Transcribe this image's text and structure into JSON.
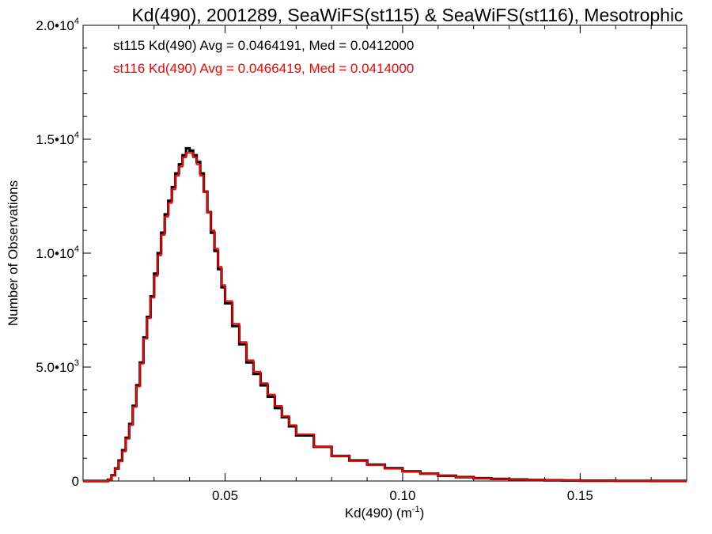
{
  "chart_data": {
    "type": "line",
    "title": "Kd(490), 2001289, SeaWiFS(st115) & SeaWiFS(st116), Mesotrophic",
    "xlabel_base": "Kd(490) (m",
    "xlabel_exp": "-1",
    "xlabel_close": ")",
    "ylabel": "Number of Observations",
    "xlim": [
      0.01,
      0.18
    ],
    "ylim": [
      0,
      20000
    ],
    "x_ticks": [
      {
        "value": 0.05,
        "label": "0.05"
      },
      {
        "value": 0.1,
        "label": "0.10"
      },
      {
        "value": 0.15,
        "label": "0.15"
      }
    ],
    "y_ticks": [
      {
        "value": 0,
        "mant": "0",
        "exp": ""
      },
      {
        "value": 5000,
        "mant": "5.0•10",
        "exp": "3"
      },
      {
        "value": 10000,
        "mant": "1.0•10",
        "exp": "4"
      },
      {
        "value": 15000,
        "mant": "1.5•10",
        "exp": "4"
      },
      {
        "value": 20000,
        "mant": "2.0•10",
        "exp": "4"
      }
    ],
    "grid": false,
    "legend_placement": "top-left",
    "series": [
      {
        "name": "st115",
        "legend_text": "st115 Kd(490) Avg = 0.0464191, Med = 0.0412000",
        "color": "#000000",
        "points": [
          [
            0.01,
            0
          ],
          [
            0.016,
            0
          ],
          [
            0.017,
            60
          ],
          [
            0.018,
            250
          ],
          [
            0.019,
            550
          ],
          [
            0.02,
            900
          ],
          [
            0.021,
            1350
          ],
          [
            0.022,
            1900
          ],
          [
            0.023,
            2500
          ],
          [
            0.024,
            3300
          ],
          [
            0.025,
            4200
          ],
          [
            0.026,
            5200
          ],
          [
            0.027,
            6300
          ],
          [
            0.028,
            7200
          ],
          [
            0.029,
            8100
          ],
          [
            0.03,
            9100
          ],
          [
            0.031,
            10000
          ],
          [
            0.032,
            10900
          ],
          [
            0.033,
            11700
          ],
          [
            0.034,
            12300
          ],
          [
            0.035,
            12900
          ],
          [
            0.036,
            13500
          ],
          [
            0.037,
            13900
          ],
          [
            0.038,
            14300
          ],
          [
            0.039,
            14600
          ],
          [
            0.04,
            14500
          ],
          [
            0.041,
            14300
          ],
          [
            0.042,
            14000
          ],
          [
            0.043,
            13500
          ],
          [
            0.044,
            12700
          ],
          [
            0.045,
            11800
          ],
          [
            0.046,
            10900
          ],
          [
            0.047,
            10100
          ],
          [
            0.048,
            9300
          ],
          [
            0.049,
            8500
          ],
          [
            0.05,
            7800
          ],
          [
            0.052,
            6800
          ],
          [
            0.054,
            6000
          ],
          [
            0.056,
            5200
          ],
          [
            0.058,
            4700
          ],
          [
            0.06,
            4200
          ],
          [
            0.062,
            3700
          ],
          [
            0.064,
            3200
          ],
          [
            0.066,
            2800
          ],
          [
            0.068,
            2400
          ],
          [
            0.07,
            2000
          ],
          [
            0.075,
            1500
          ],
          [
            0.08,
            1100
          ],
          [
            0.085,
            900
          ],
          [
            0.09,
            720
          ],
          [
            0.095,
            560
          ],
          [
            0.1,
            420
          ],
          [
            0.105,
            320
          ],
          [
            0.11,
            230
          ],
          [
            0.115,
            170
          ],
          [
            0.12,
            120
          ],
          [
            0.125,
            90
          ],
          [
            0.13,
            65
          ],
          [
            0.135,
            45
          ],
          [
            0.14,
            32
          ],
          [
            0.145,
            22
          ],
          [
            0.15,
            15
          ],
          [
            0.16,
            8
          ],
          [
            0.17,
            4
          ],
          [
            0.18,
            2
          ]
        ]
      },
      {
        "name": "st116",
        "legend_text": "st116 Kd(490) Avg = 0.0466419, Med = 0.0414000",
        "color": "#ff0000",
        "points": [
          [
            0.01,
            0
          ],
          [
            0.016,
            0
          ],
          [
            0.017,
            50
          ],
          [
            0.018,
            230
          ],
          [
            0.019,
            520
          ],
          [
            0.02,
            860
          ],
          [
            0.021,
            1300
          ],
          [
            0.022,
            1850
          ],
          [
            0.023,
            2450
          ],
          [
            0.024,
            3250
          ],
          [
            0.025,
            4150
          ],
          [
            0.026,
            5150
          ],
          [
            0.027,
            6250
          ],
          [
            0.028,
            7150
          ],
          [
            0.029,
            8050
          ],
          [
            0.03,
            9000
          ],
          [
            0.031,
            9900
          ],
          [
            0.032,
            10800
          ],
          [
            0.033,
            11600
          ],
          [
            0.034,
            12200
          ],
          [
            0.035,
            12800
          ],
          [
            0.036,
            13400
          ],
          [
            0.037,
            13800
          ],
          [
            0.038,
            14200
          ],
          [
            0.039,
            14400
          ],
          [
            0.04,
            14400
          ],
          [
            0.041,
            14200
          ],
          [
            0.042,
            13900
          ],
          [
            0.043,
            13400
          ],
          [
            0.044,
            12700
          ],
          [
            0.045,
            11800
          ],
          [
            0.046,
            11000
          ],
          [
            0.047,
            10200
          ],
          [
            0.048,
            9400
          ],
          [
            0.049,
            8600
          ],
          [
            0.05,
            7900
          ],
          [
            0.052,
            6900
          ],
          [
            0.054,
            6100
          ],
          [
            0.056,
            5300
          ],
          [
            0.058,
            4800
          ],
          [
            0.06,
            4300
          ],
          [
            0.062,
            3800
          ],
          [
            0.064,
            3300
          ],
          [
            0.066,
            2850
          ],
          [
            0.068,
            2450
          ],
          [
            0.07,
            2050
          ],
          [
            0.075,
            1500
          ],
          [
            0.08,
            1100
          ],
          [
            0.085,
            880
          ],
          [
            0.09,
            700
          ],
          [
            0.095,
            540
          ],
          [
            0.1,
            410
          ],
          [
            0.105,
            310
          ],
          [
            0.11,
            225
          ],
          [
            0.115,
            165
          ],
          [
            0.12,
            118
          ],
          [
            0.125,
            88
          ],
          [
            0.13,
            63
          ],
          [
            0.135,
            44
          ],
          [
            0.14,
            31
          ],
          [
            0.145,
            21
          ],
          [
            0.15,
            14
          ],
          [
            0.16,
            8
          ],
          [
            0.17,
            4
          ],
          [
            0.18,
            2
          ]
        ]
      }
    ]
  }
}
